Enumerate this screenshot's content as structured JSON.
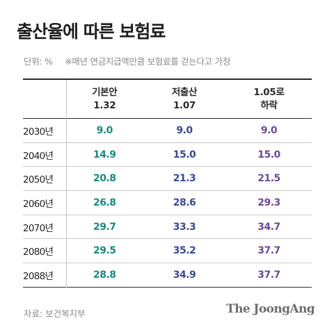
{
  "title": "출산율에 따른 보험료",
  "subtitle": {
    "unit": "단위: %",
    "note": "※매년 연금지급액만큼 보험료를 걷는다고 가정"
  },
  "chart_data": {
    "type": "table",
    "title": "출산율에 따른 보험료",
    "unit": "%",
    "columns": [
      {
        "name_line1": "기본안",
        "name_line2": "1.32",
        "color": "#1a8a80"
      },
      {
        "name_line1": "저출산",
        "name_line2": "1.07",
        "color": "#3a4a8e"
      },
      {
        "name_line1": "1.05로",
        "name_line2": "하락",
        "color": "#6b4a9a"
      }
    ],
    "rows": [
      {
        "year": "2030년",
        "values": [
          "9.0",
          "9.0",
          "9.0"
        ]
      },
      {
        "year": "2040년",
        "values": [
          "14.9",
          "15.0",
          "15.0"
        ]
      },
      {
        "year": "2050년",
        "values": [
          "20.8",
          "21.3",
          "21.5"
        ]
      },
      {
        "year": "2060년",
        "values": [
          "26.8",
          "28.6",
          "29.3"
        ]
      },
      {
        "year": "2070년",
        "values": [
          "29.7",
          "33.3",
          "34.7"
        ]
      },
      {
        "year": "2080년",
        "values": [
          "29.5",
          "35.2",
          "37.7"
        ]
      },
      {
        "year": "2088년",
        "values": [
          "28.8",
          "34.9",
          "37.7"
        ]
      }
    ]
  },
  "footer": {
    "source": "자료: 보건복지부",
    "logo": "The JoongAng"
  }
}
